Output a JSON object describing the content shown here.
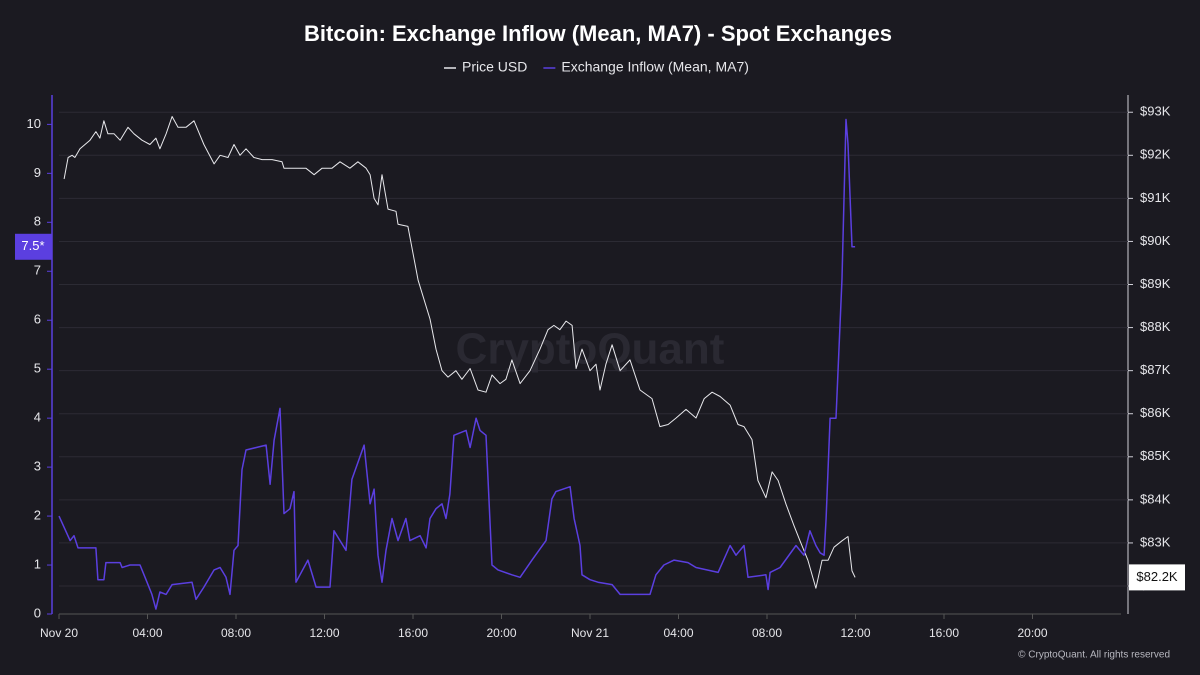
{
  "chart_data": {
    "type": "line",
    "title": "Bitcoin: Exchange Inflow (Mean, MA7) - Spot Exchanges",
    "watermark": "CryptoQuant",
    "footer": "© CryptoQuant. All rights reserved",
    "xlim": [
      0,
      48
    ],
    "xticks": [
      {
        "value": 0,
        "label": "Nov 20"
      },
      {
        "value": 4,
        "label": "04:00"
      },
      {
        "value": 8,
        "label": "08:00"
      },
      {
        "value": 12,
        "label": "12:00"
      },
      {
        "value": 16,
        "label": "16:00"
      },
      {
        "value": 20,
        "label": "20:00"
      },
      {
        "value": 24,
        "label": "Nov 21"
      },
      {
        "value": 28,
        "label": "04:00"
      },
      {
        "value": 32,
        "label": "08:00"
      },
      {
        "value": 36,
        "label": "12:00"
      },
      {
        "value": 40,
        "label": "16:00"
      },
      {
        "value": 44,
        "label": "20:00"
      }
    ],
    "ylim": [
      0,
      10.6
    ],
    "yticks": [
      0,
      1,
      2,
      3,
      4,
      5,
      6,
      7,
      8,
      9,
      10
    ],
    "y2lim": [
      81350,
      93400
    ],
    "y2ticks": [
      {
        "value": 82000,
        "label": "$82K"
      },
      {
        "value": 83000,
        "label": "$83K"
      },
      {
        "value": 84000,
        "label": "$84K"
      },
      {
        "value": 85000,
        "label": "$85K"
      },
      {
        "value": 86000,
        "label": "$86K"
      },
      {
        "value": 87000,
        "label": "$87K"
      },
      {
        "value": 88000,
        "label": "$88K"
      },
      {
        "value": 89000,
        "label": "$89K"
      },
      {
        "value": 90000,
        "label": "$90K"
      },
      {
        "value": 91000,
        "label": "$91K"
      },
      {
        "value": 92000,
        "label": "$92K"
      },
      {
        "value": 93000,
        "label": "$93K"
      }
    ],
    "grid": true,
    "annotations": [
      {
        "text": "7.5*",
        "value": 7.5,
        "axis": "y",
        "color": "#5b3fe0"
      },
      {
        "text": "$82.2K",
        "value": 82200,
        "axis": "y2",
        "color": "#ffffff"
      }
    ],
    "series": [
      {
        "name": "Price USD",
        "color": "#e8e8ec",
        "axis": "y2",
        "x": [
          0.23,
          0.41,
          0.59,
          0.72,
          0.95,
          1.4,
          1.67,
          1.85,
          2.03,
          2.21,
          2.49,
          2.76,
          3.12,
          3.39,
          3.75,
          4.11,
          4.38,
          4.56,
          4.84,
          5.11,
          5.38,
          5.74,
          6.1,
          6.55,
          7.01,
          7.28,
          7.64,
          7.91,
          8.18,
          8.45,
          8.81,
          9.18,
          9.63,
          10.08,
          10.17,
          10.62,
          11.16,
          11.53,
          11.89,
          12.34,
          12.7,
          13.15,
          13.51,
          13.88,
          14.06,
          14.24,
          14.42,
          14.6,
          14.87,
          15.23,
          15.32,
          15.77,
          16.23,
          16.77,
          17.04,
          17.31,
          17.58,
          17.94,
          18.21,
          18.58,
          18.94,
          19.3,
          19.57,
          19.93,
          20.2,
          20.47,
          20.84,
          21.29,
          21.74,
          22.1,
          22.37,
          22.64,
          22.92,
          23.19,
          23.37,
          23.64,
          24.0,
          24.27,
          24.45,
          24.72,
          25.0,
          25.36,
          25.81,
          26.26,
          26.8,
          27.16,
          27.53,
          27.89,
          28.34,
          28.79,
          29.16,
          29.52,
          29.88,
          30.33,
          30.69,
          30.96,
          31.32,
          31.59,
          31.95,
          32.23,
          32.5,
          32.86,
          33.22,
          33.49,
          33.85,
          34.21,
          34.49,
          34.76,
          35.03,
          35.39,
          35.66,
          35.84,
          35.98
        ],
        "values": [
          91450,
          91950,
          92000,
          91950,
          92150,
          92350,
          92550,
          92400,
          92800,
          92500,
          92500,
          92350,
          92650,
          92500,
          92350,
          92250,
          92400,
          92150,
          92500,
          92900,
          92650,
          92650,
          92800,
          92250,
          91800,
          92000,
          91950,
          92250,
          92000,
          92150,
          91950,
          91900,
          91900,
          91850,
          91700,
          91700,
          91700,
          91550,
          91700,
          91700,
          91850,
          91700,
          91850,
          91700,
          91550,
          91000,
          90850,
          91550,
          90750,
          90700,
          90400,
          90350,
          89100,
          88200,
          87500,
          87000,
          86850,
          87000,
          86800,
          87050,
          86550,
          86500,
          86900,
          86700,
          86800,
          87250,
          86700,
          87000,
          87500,
          87950,
          88050,
          87950,
          88150,
          88050,
          87050,
          87500,
          87000,
          87150,
          86550,
          87150,
          87600,
          87000,
          87250,
          86550,
          86350,
          85700,
          85750,
          85900,
          86100,
          85900,
          86350,
          86500,
          86400,
          86200,
          85750,
          85700,
          85400,
          84450,
          84050,
          84650,
          84450,
          83900,
          83400,
          83050,
          82600,
          81950,
          82600,
          82600,
          82900,
          83050,
          83150,
          82350,
          82200
        ]
      },
      {
        "name": "Exchange Inflow (Mean, MA7)",
        "color": "#5b3fe0",
        "axis": "y",
        "x": [
          0.0,
          0.5,
          0.68,
          0.86,
          1.67,
          1.76,
          2.03,
          2.12,
          2.76,
          2.85,
          3.21,
          3.66,
          3.93,
          4.2,
          4.38,
          4.56,
          4.84,
          5.11,
          6.01,
          6.19,
          6.55,
          7.01,
          7.28,
          7.55,
          7.73,
          7.91,
          8.09,
          8.27,
          8.45,
          9.36,
          9.54,
          9.72,
          9.99,
          10.17,
          10.44,
          10.62,
          10.71,
          11.25,
          11.62,
          12.25,
          12.43,
          12.7,
          12.97,
          13.24,
          13.79,
          14.06,
          14.24,
          14.42,
          14.6,
          14.78,
          15.05,
          15.32,
          15.68,
          15.86,
          16.32,
          16.59,
          16.77,
          17.04,
          17.31,
          17.49,
          17.67,
          17.85,
          18.4,
          18.58,
          18.85,
          19.03,
          19.3,
          19.57,
          19.84,
          20.47,
          20.84,
          21.38,
          22.01,
          22.28,
          22.46,
          23.1,
          23.28,
          23.55,
          23.64,
          24.0,
          24.36,
          25.0,
          25.36,
          26.71,
          26.98,
          27.34,
          27.8,
          28.43,
          28.79,
          29.79,
          30.33,
          30.6,
          30.96,
          31.14,
          31.95,
          32.05,
          32.14,
          32.59,
          33.31,
          33.67,
          33.94,
          34.21,
          34.4,
          34.58,
          34.67,
          34.85,
          35.12,
          35.39,
          35.57,
          35.66,
          35.84,
          35.98
        ],
        "values": [
          2.0,
          1.5,
          1.6,
          1.35,
          1.35,
          0.7,
          0.7,
          1.05,
          1.05,
          0.95,
          1.0,
          1.0,
          0.7,
          0.4,
          0.1,
          0.45,
          0.4,
          0.6,
          0.65,
          0.3,
          0.55,
          0.9,
          0.95,
          0.75,
          0.4,
          1.3,
          1.4,
          2.95,
          3.35,
          3.45,
          2.65,
          3.55,
          4.2,
          2.05,
          2.15,
          2.5,
          0.65,
          1.1,
          0.55,
          0.55,
          1.7,
          1.5,
          1.3,
          2.75,
          3.45,
          2.25,
          2.55,
          1.2,
          0.65,
          1.3,
          1.95,
          1.5,
          1.95,
          1.5,
          1.6,
          1.35,
          1.95,
          2.15,
          2.25,
          1.95,
          2.45,
          3.65,
          3.75,
          3.4,
          4.0,
          3.75,
          3.65,
          1.0,
          0.9,
          0.8,
          0.75,
          1.1,
          1.5,
          2.35,
          2.5,
          2.6,
          1.95,
          1.4,
          0.8,
          0.7,
          0.65,
          0.6,
          0.4,
          0.4,
          0.8,
          1.0,
          1.1,
          1.05,
          0.95,
          0.85,
          1.4,
          1.2,
          1.4,
          0.75,
          0.8,
          0.5,
          0.85,
          0.95,
          1.4,
          1.2,
          1.7,
          1.4,
          1.25,
          1.2,
          1.95,
          4.0,
          4.0,
          6.85,
          10.1,
          9.6,
          7.5,
          7.5
        ]
      }
    ]
  }
}
